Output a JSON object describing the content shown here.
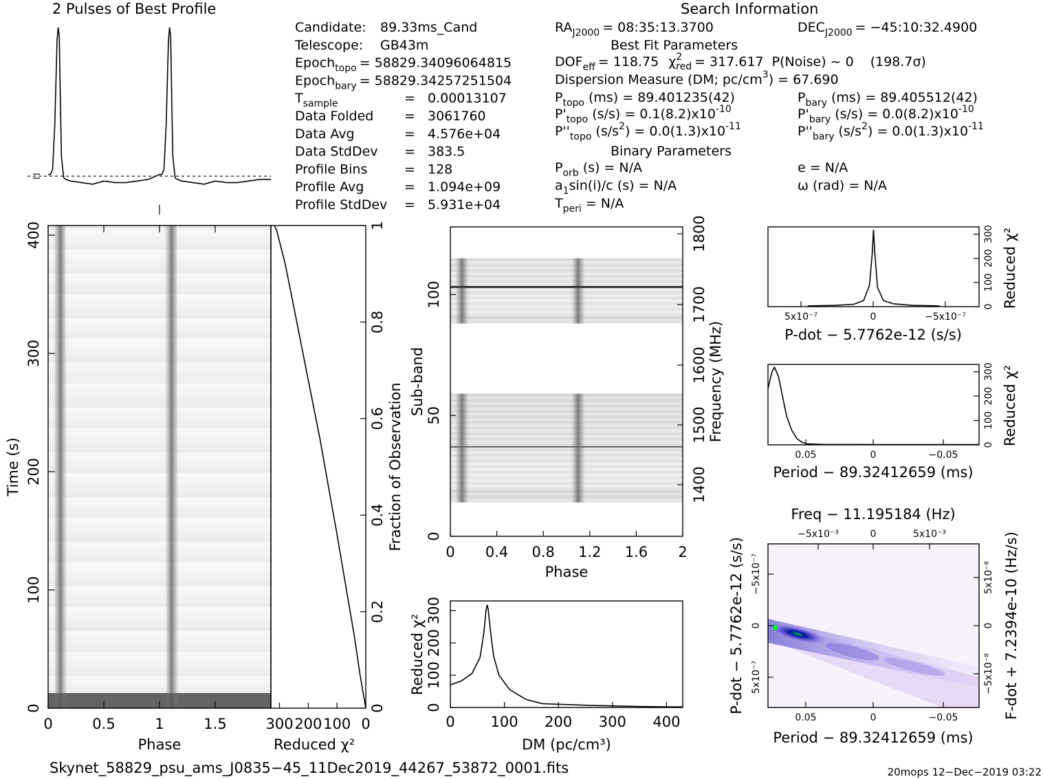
{
  "header": {
    "profile_title": "2 Pulses of Best Profile",
    "search_title": "Search Information",
    "best_fit_title": "Best Fit Parameters",
    "binary_title": "Binary Parameters"
  },
  "info_left": [
    {
      "label": "Candidate:",
      "value": "89.33ms_Cand"
    },
    {
      "label": "Telescope:",
      "value": "GB43m"
    },
    {
      "label": "Epoch",
      "sub": "topo",
      "value": "= 58829.34096064815"
    },
    {
      "label": "Epoch",
      "sub": "bary",
      "value": "= 58829.34257251504"
    },
    {
      "label": "T",
      "sub": "sample",
      "value": "0.00013107"
    },
    {
      "label": "Data Folded",
      "value": "3061760"
    },
    {
      "label": "Data Avg",
      "value": "4.576e+04"
    },
    {
      "label": "Data StdDev",
      "value": "383.5"
    },
    {
      "label": "Profile Bins",
      "value": "128"
    },
    {
      "label": "Profile Avg",
      "value": "1.094e+09"
    },
    {
      "label": "Profile StdDev",
      "value": "5.931e+04"
    }
  ],
  "info_mid": {
    "ra": "RA",
    "ra_sub": "J2000",
    "ra_val": "= 08:35:13.3700",
    "dof": "DOF",
    "dof_sub": "eff",
    "dof_val": "= 118.75",
    "chi": "χ",
    "chi_sup": "2",
    "chi_sub": "red",
    "chi_val": "= 317.617",
    "pnoise": "P(Noise) ~ 0",
    "sigma": "(198.7σ)",
    "dm_line": "Dispersion Measure (DM; pc/cm",
    "dm_sup": "3",
    "dm_val": ") = 67.690",
    "ptopo": "P",
    "ptopo_sub": "topo",
    "ptopo_val": "(ms) =  89.401235(42)",
    "pdtopo": "P'",
    "pdtopo_sub": "topo",
    "pdtopo_val": "(s/s) =  0.1(8.2)x10",
    "pdtopo_exp": "-10",
    "pddtopo": "P''",
    "pddtopo_sub": "topo",
    "pddtopo_val": "(s/s",
    "pddtopo_sup2": "2",
    "pddtopo_val2": ") = 0.0(1.3)x10",
    "pddtopo_exp": "-11",
    "porb": "P",
    "porb_sub": "orb",
    "porb_val": "(s) = N/A",
    "a1": "a",
    "a1_sub": "1",
    "a1_val": "sin(i)/c (s) = N/A",
    "tperi": "T",
    "tperi_sub": "peri",
    "tperi_val": "= N/A"
  },
  "info_right": {
    "dec": "DEC",
    "dec_sub": "J2000",
    "dec_val": "= −45:10:32.4900",
    "pbary": "P",
    "pbary_sub": "bary",
    "pbary_val": "(ms) =  89.405512(42)",
    "pdbary": "P'",
    "pdbary_sub": "bary",
    "pdbary_val": "(s/s) = 0.0(8.2)x10",
    "pdbary_exp": "-10",
    "pddbary": "P''",
    "pddbary_sub": "bary",
    "pddbary_val": "(s/s",
    "pddbary_sup2": "2",
    "pddbary_val2": ") = 0.0(1.3)x10",
    "pddbary_exp": "-11",
    "ecc": "e = N/A",
    "omega": "ω (rad) = N/A"
  },
  "footer": {
    "filename": "Skynet_58829_psu_ams_J0835−45_11Dec2019_44267_53872_0001.fits",
    "stamp": "20mops 12−Dec−2019 03:22"
  },
  "chart_data": [
    {
      "id": "profile",
      "type": "line",
      "title": "2 Pulses of Best Profile",
      "x": [
        0,
        0.02,
        0.04,
        0.06,
        0.08,
        0.09,
        0.1,
        0.11,
        0.12,
        0.14,
        0.16,
        0.2,
        0.3,
        0.4,
        0.5,
        0.6,
        0.7,
        0.8,
        0.9,
        1.0,
        1.02,
        1.04,
        1.06,
        1.08,
        1.09,
        1.1,
        1.11,
        1.12,
        1.14,
        1.16,
        1.2,
        1.3,
        1.4,
        1.5,
        1.6,
        1.7,
        1.8,
        1.9,
        2.0
      ],
      "values": [
        0.09,
        0.09,
        0.12,
        0.4,
        0.92,
        1.0,
        0.95,
        0.55,
        0.2,
        0.07,
        0.06,
        0.05,
        0.04,
        0.03,
        0.05,
        0.04,
        0.04,
        0.05,
        0.06,
        0.09,
        0.09,
        0.12,
        0.4,
        0.92,
        1.0,
        0.95,
        0.55,
        0.2,
        0.07,
        0.06,
        0.05,
        0.04,
        0.03,
        0.05,
        0.04,
        0.04,
        0.05,
        0.06,
        0.06
      ],
      "baseline": 0.08
    },
    {
      "id": "time_phase",
      "type": "heatmap",
      "xlabel": "Phase",
      "ylabel": "Time (s)",
      "xlim": [
        0,
        2
      ],
      "ylim": [
        0,
        400
      ],
      "xticks": [
        "0",
        "0.5",
        "1",
        "1.5"
      ],
      "yticks": [
        "0",
        "100",
        "200",
        "300",
        "400"
      ],
      "pulse_phases": [
        0.1,
        1.1
      ]
    },
    {
      "id": "reduced_chi_time",
      "type": "line",
      "xlabel": "Reduced χ²",
      "ylabel": "Fraction of Observation",
      "xlim": [
        330,
        0
      ],
      "ylim": [
        0,
        1
      ],
      "xticks": [
        "300",
        "200",
        "100",
        "0"
      ],
      "yticks": [
        "0",
        "0.2",
        "0.4",
        "0.6",
        "0.8",
        "1"
      ],
      "x": [
        0,
        20,
        40,
        60,
        80,
        100,
        130,
        160,
        190,
        220,
        250,
        280,
        310,
        318
      ],
      "y": [
        0,
        0.07,
        0.15,
        0.22,
        0.29,
        0.36,
        0.46,
        0.56,
        0.65,
        0.74,
        0.83,
        0.92,
        0.99,
        1.0
      ]
    },
    {
      "id": "subband_phase",
      "type": "heatmap",
      "xlabel": "Phase",
      "ylabel": "Sub-band",
      "y2label": "Frequency (MHz)",
      "xlim": [
        0,
        2
      ],
      "ylim": [
        0,
        128
      ],
      "xticks": [
        "0",
        "0.4",
        "0.8",
        "1.2",
        "1.6",
        "2"
      ],
      "yticks": [
        "0",
        "50",
        "100"
      ],
      "y2ticks": [
        "1400",
        "1500",
        "1600",
        "1700",
        "1800"
      ],
      "bands": [
        [
          14,
          59
        ],
        [
          88,
          115
        ]
      ]
    },
    {
      "id": "dm_chi",
      "type": "line",
      "xlabel": "DM (pc/cm³)",
      "ylabel": "Reduced χ²",
      "xlim": [
        0,
        430
      ],
      "ylim": [
        0,
        330
      ],
      "xticks": [
        "0",
        "100",
        "200",
        "300",
        "400"
      ],
      "yticks": [
        "0",
        "100",
        "200",
        "300"
      ],
      "x": [
        0,
        20,
        40,
        55,
        62,
        66,
        68,
        70,
        74,
        80,
        90,
        110,
        140,
        170,
        200,
        250,
        300,
        350,
        400,
        430
      ],
      "values": [
        70,
        82,
        105,
        155,
        230,
        300,
        318,
        305,
        240,
        160,
        100,
        55,
        25,
        12,
        10,
        7,
        5,
        3,
        2,
        2
      ]
    },
    {
      "id": "pdot_chi",
      "type": "line",
      "xlabel": "P-dot − 5.7762e-12 (s/s)",
      "ylabel": "Reduced χ²",
      "xticks": [
        "5x10⁻⁷",
        "0",
        "−5x10⁻⁷"
      ],
      "yticks": [
        "0",
        "100",
        "200",
        "300"
      ],
      "x": [
        -1.0,
        -0.6,
        -0.3,
        -0.15,
        -0.06,
        -0.02,
        0,
        0.02,
        0.06,
        0.15,
        0.3,
        0.6,
        1.0
      ],
      "values": [
        3,
        5,
        10,
        25,
        90,
        220,
        318,
        220,
        80,
        25,
        12,
        5,
        3
      ]
    },
    {
      "id": "period_chi",
      "type": "line",
      "xlabel": "Period − 89.32412659 (ms)",
      "ylabel": "Reduced χ²",
      "xticks": [
        "0.05",
        "0",
        "−0.05"
      ],
      "yticks": [
        "0",
        "100",
        "200",
        "300"
      ],
      "x": [
        0.08,
        0.077,
        0.075,
        0.072,
        0.069,
        0.066,
        0.062,
        0.058,
        0.054,
        0.05,
        0.04,
        0.0,
        -0.05,
        -0.08
      ],
      "values": [
        230,
        300,
        318,
        280,
        200,
        120,
        60,
        25,
        10,
        4,
        2,
        1,
        1,
        1
      ]
    },
    {
      "id": "period_pdot_heatmap",
      "type": "heatmap",
      "title": "Freq − 11.195184 (Hz)",
      "xlabel": "Period − 89.32412659 (ms)",
      "ylabel": "P-dot − 5.7762e-12 (s/s)",
      "y2label": "F-dot + 7.2394e-10 (Hz/s)",
      "xticks": [
        "0.05",
        "0",
        "−0.05"
      ],
      "x2ticks": [
        "−5x10⁻³",
        "0",
        "5x10⁻³"
      ],
      "yticks": [
        "−5x10⁻⁷",
        "0",
        "5x10⁻⁷"
      ],
      "y2ticks": [
        "5x10⁻⁸",
        "0",
        "−5x10⁻⁸"
      ]
    }
  ]
}
